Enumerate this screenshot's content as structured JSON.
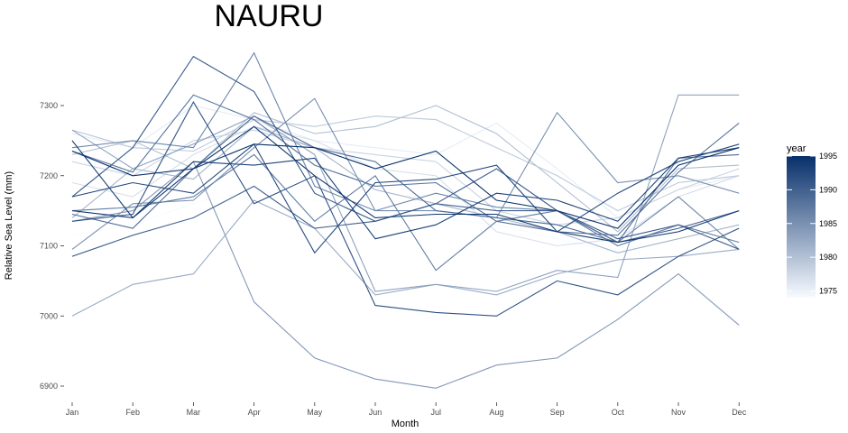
{
  "chart_data": {
    "type": "line",
    "title": "NAURU",
    "xlabel": "Month",
    "ylabel": "Relative Sea Level (mm)",
    "categories": [
      "Jan",
      "Feb",
      "Mar",
      "Apr",
      "May",
      "Jun",
      "Jul",
      "Aug",
      "Sep",
      "Oct",
      "Nov",
      "Dec"
    ],
    "ylim": [
      6880,
      7380
    ],
    "yticks": [
      6900,
      7000,
      7100,
      7200,
      7300
    ],
    "grid": false,
    "legend": {
      "title": "year",
      "position": "right",
      "range": [
        1974,
        1995
      ],
      "ticks": [
        1975,
        1980,
        1985,
        1990,
        1995
      ],
      "color_low": "#f7fbff",
      "color_high": "#08306b"
    },
    "series": [
      {
        "year": 1974,
        "values": [
          7115,
          7130,
          7160,
          7180,
          7165,
          7150,
          7140,
          7130,
          7110,
          7090,
          7120,
          7140
        ]
      },
      {
        "year": 1975,
        "values": [
          7260,
          7240,
          7300,
          7280,
          7250,
          7240,
          7230,
          7275,
          7210,
          7140,
          7180,
          7200
        ]
      },
      {
        "year": 1976,
        "values": [
          7190,
          7170,
          7230,
          7270,
          7250,
          7210,
          7200,
          7120,
          7100,
          7110,
          7170,
          7200
        ]
      },
      {
        "year": 1977,
        "values": [
          7220,
          7200,
          7250,
          7265,
          7240,
          7230,
          7220,
          7150,
          7130,
          7140,
          7180,
          7210
        ]
      },
      {
        "year": 1978,
        "values": [
          7265,
          7240,
          7235,
          7280,
          7270,
          7285,
          7280,
          7240,
          7200,
          7150,
          7190,
          7200
        ]
      },
      {
        "year": 1979,
        "values": [
          7230,
          7250,
          7210,
          7290,
          7260,
          7270,
          7300,
          7260,
          7190,
          7120,
          7210,
          7215
        ]
      },
      {
        "year": 1980,
        "values": [
          7140,
          7210,
          7195,
          7270,
          7240,
          7180,
          7160,
          7140,
          7120,
          7090,
          7110,
          7130
        ]
      },
      {
        "year": 1981,
        "values": [
          7000,
          7045,
          7060,
          7165,
          7125,
          7030,
          7045,
          7030,
          7060,
          7080,
          7085,
          7095
        ]
      },
      {
        "year": 1982,
        "values": [
          7265,
          7210,
          7245,
          7285,
          7230,
          7035,
          7045,
          7035,
          7065,
          7055,
          7315,
          7315
        ]
      },
      {
        "year": 1983,
        "values": [
          7135,
          7150,
          7220,
          7020,
          6940,
          6910,
          6897,
          6930,
          6940,
          6995,
          7060,
          6987
        ]
      },
      {
        "year": 1984,
        "values": [
          7095,
          7160,
          7165,
          7240,
          7310,
          7150,
          7150,
          7140,
          7290,
          7190,
          7200,
          7175
        ]
      },
      {
        "year": 1985,
        "values": [
          7240,
          7250,
          7240,
          7375,
          7185,
          7150,
          7175,
          7155,
          7150,
          7105,
          7170,
          7095
        ]
      },
      {
        "year": 1986,
        "values": [
          7150,
          7155,
          7170,
          7230,
          7135,
          7200,
          7065,
          7135,
          7150,
          7100,
          7130,
          7105
        ]
      },
      {
        "year": 1987,
        "values": [
          7235,
          7205,
          7315,
          7280,
          7215,
          7185,
          7190,
          7135,
          7120,
          7115,
          7205,
          7275
        ]
      },
      {
        "year": 1988,
        "values": [
          7145,
          7125,
          7210,
          7285,
          7240,
          7220,
          7150,
          7140,
          7130,
          7105,
          7225,
          7230
        ]
      },
      {
        "year": 1989,
        "values": [
          7085,
          7115,
          7140,
          7185,
          7125,
          7135,
          7160,
          7150,
          7150,
          7105,
          7125,
          7150
        ]
      },
      {
        "year": 1990,
        "values": [
          7170,
          7240,
          7370,
          7320,
          7175,
          7135,
          7160,
          7210,
          7150,
          7110,
          7130,
          7095
        ]
      },
      {
        "year": 1991,
        "values": [
          7135,
          7145,
          7305,
          7160,
          7200,
          7015,
          7005,
          7000,
          7050,
          7030,
          7085,
          7125
        ]
      },
      {
        "year": 1992,
        "values": [
          7170,
          7190,
          7175,
          7245,
          7090,
          7190,
          7195,
          7215,
          7120,
          7175,
          7220,
          7245
        ]
      },
      {
        "year": 1993,
        "values": [
          7250,
          7140,
          7220,
          7215,
          7225,
          7110,
          7130,
          7175,
          7165,
          7135,
          7225,
          7240
        ]
      },
      {
        "year": 1994,
        "values": [
          7150,
          7140,
          7210,
          7270,
          7200,
          7140,
          7145,
          7145,
          7120,
          7105,
          7120,
          7150
        ]
      },
      {
        "year": 1995,
        "values": [
          7235,
          7200,
          7210,
          7245,
          7240,
          7210,
          7235,
          7165,
          7150,
          7125,
          7215,
          7240
        ]
      }
    ]
  }
}
